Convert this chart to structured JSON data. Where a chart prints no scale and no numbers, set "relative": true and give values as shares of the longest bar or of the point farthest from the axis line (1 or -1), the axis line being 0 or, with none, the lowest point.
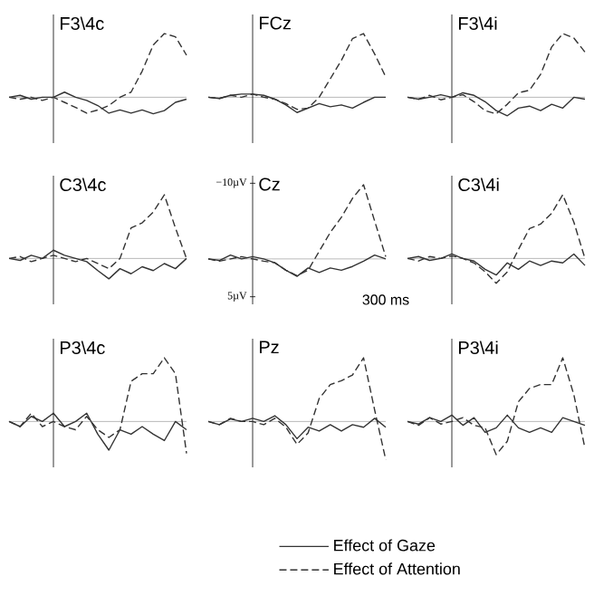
{
  "chart_data": [
    {
      "type": "line",
      "title": "F3\\4c",
      "categories": [
        null,
        null,
        null,
        null,
        null,
        null,
        null,
        null,
        null,
        null,
        null,
        null,
        null,
        null,
        null,
        null,
        null
      ],
      "relative": true,
      "series": [
        {
          "color": "#333333",
          "line_style": "solid",
          "values": [
            0,
            0.03,
            -0.03,
            0,
            0,
            0.08,
            0,
            -0.05,
            -0.13,
            -0.25,
            -0.2,
            -0.25,
            -0.2,
            -0.26,
            -0.21,
            -0.08,
            -0.03
          ]
        },
        {
          "color": "#333333",
          "line_style": "dashed",
          "values": [
            0,
            -0.03,
            0,
            -0.05,
            0,
            -0.08,
            -0.16,
            -0.25,
            -0.2,
            -0.13,
            0,
            0.08,
            0.41,
            0.82,
            1,
            0.95,
            0.66
          ]
        }
      ]
    },
    {
      "type": "line",
      "title": "FCz",
      "categories": [
        null,
        null,
        null,
        null,
        null,
        null,
        null,
        null,
        null,
        null,
        null,
        null,
        null,
        null,
        null,
        null,
        null
      ],
      "relative": true,
      "series": [
        {
          "color": "#333333",
          "line_style": "solid",
          "values": [
            0,
            -0.02,
            0.03,
            0.05,
            0.05,
            0.03,
            -0.03,
            -0.12,
            -0.24,
            -0.17,
            -0.1,
            -0.15,
            -0.12,
            -0.17,
            -0.08,
            0,
            0
          ]
        },
        {
          "color": "#333333",
          "line_style": "dashed",
          "values": [
            0,
            -0.02,
            0.03,
            0,
            0.05,
            0,
            -0.03,
            -0.1,
            -0.19,
            -0.17,
            0,
            0.29,
            0.58,
            0.92,
            1,
            0.68,
            0.32
          ]
        }
      ]
    },
    {
      "type": "line",
      "title": "F3\\4i",
      "categories": [
        null,
        null,
        null,
        null,
        null,
        null,
        null,
        null,
        null,
        null,
        null,
        null,
        null,
        null,
        null,
        null,
        null
      ],
      "relative": true,
      "series": [
        {
          "color": "#333333",
          "line_style": "solid",
          "values": [
            0,
            -0.03,
            0,
            0.04,
            0,
            0.07,
            0.03,
            -0.07,
            -0.21,
            -0.29,
            -0.17,
            -0.14,
            -0.21,
            -0.11,
            -0.17,
            0,
            -0.03
          ]
        },
        {
          "color": "#333333",
          "line_style": "dashed",
          "values": [
            0,
            -0.03,
            0.03,
            -0.04,
            0,
            0.04,
            -0.07,
            -0.21,
            -0.26,
            -0.11,
            0.07,
            0.11,
            0.36,
            0.79,
            1,
            0.93,
            0.71
          ]
        }
      ]
    },
    {
      "type": "line",
      "title": "C3\\4c",
      "categories": [
        null,
        null,
        null,
        null,
        null,
        null,
        null,
        null,
        null,
        null,
        null,
        null,
        null,
        null,
        null,
        null,
        null
      ],
      "relative": true,
      "series": [
        {
          "color": "#333333",
          "line_style": "solid",
          "values": [
            0,
            -0.03,
            0.05,
            0,
            0.13,
            0.05,
            0,
            -0.05,
            -0.19,
            -0.32,
            -0.16,
            -0.24,
            -0.13,
            -0.19,
            -0.08,
            -0.16,
            0
          ]
        },
        {
          "color": "#333333",
          "line_style": "dashed",
          "values": [
            0,
            0.03,
            -0.05,
            0,
            0.05,
            0,
            -0.05,
            0,
            -0.08,
            -0.16,
            0,
            0.48,
            0.56,
            0.73,
            1,
            0.48,
            0
          ]
        }
      ]
    },
    {
      "type": "line",
      "title": "Cz",
      "categories": [
        null,
        null,
        null,
        null,
        null,
        null,
        null,
        null,
        null,
        null,
        null,
        null,
        null,
        null,
        null,
        null,
        null
      ],
      "ylim": [
        6,
        -11
      ],
      "yticks": [
        {
          "value": -10,
          "label": "−10µV"
        },
        {
          "value": 5,
          "label": "5µV"
        }
      ],
      "annotations": [
        "300 ms"
      ],
      "series": [
        {
          "color": "#333333",
          "line_style": "solid",
          "values": [
            0,
            0.2,
            -0.5,
            0,
            -0.3,
            0,
            0.5,
            1.5,
            2.3,
            1.2,
            1.8,
            1.2,
            1.5,
            1,
            0.3,
            -0.5,
            0
          ]
        },
        {
          "color": "#333333",
          "line_style": "dashed",
          "values": [
            0,
            0.3,
            0,
            -0.3,
            0,
            0.3,
            0.5,
            1.5,
            2.2,
            1.5,
            -1,
            -3.5,
            -5.5,
            -8,
            -9.8,
            -5,
            -0.3
          ]
        }
      ]
    },
    {
      "type": "line",
      "title": "C3\\4i",
      "categories": [
        null,
        null,
        null,
        null,
        null,
        null,
        null,
        null,
        null,
        null,
        null,
        null,
        null,
        null,
        null,
        null,
        null
      ],
      "relative": true,
      "series": [
        {
          "color": "#333333",
          "line_style": "solid",
          "values": [
            0,
            0.03,
            -0.03,
            0,
            0.07,
            0,
            -0.04,
            -0.17,
            -0.26,
            -0.07,
            -0.17,
            -0.04,
            -0.11,
            -0.04,
            -0.07,
            0.07,
            -0.11
          ]
        },
        {
          "color": "#333333",
          "line_style": "dashed",
          "values": [
            0,
            -0.04,
            0.03,
            0,
            0.04,
            0,
            -0.07,
            -0.21,
            -0.39,
            -0.21,
            0.14,
            0.47,
            0.54,
            0.71,
            1,
            0.57,
            0
          ]
        }
      ]
    },
    {
      "type": "line",
      "title": "P3\\4c",
      "categories": [
        null,
        null,
        null,
        null,
        null,
        null,
        null,
        null,
        null,
        null,
        null,
        null,
        null,
        null,
        null,
        null,
        null
      ],
      "relative": true,
      "series": [
        {
          "color": "#333333",
          "line_style": "solid",
          "values": [
            0,
            -0.08,
            0.08,
            0,
            0.13,
            -0.08,
            0,
            0.13,
            -0.2,
            -0.45,
            -0.13,
            -0.2,
            -0.08,
            -0.2,
            -0.3,
            0,
            -0.13
          ]
        },
        {
          "color": "#333333",
          "line_style": "dashed",
          "values": [
            0,
            -0.08,
            0.13,
            -0.08,
            0,
            -0.08,
            -0.13,
            0.08,
            -0.13,
            -0.25,
            -0.13,
            0.63,
            0.75,
            0.75,
            1,
            0.75,
            -0.5
          ]
        }
      ]
    },
    {
      "type": "line",
      "title": "Pz",
      "categories": [
        null,
        null,
        null,
        null,
        null,
        null,
        null,
        null,
        null,
        null,
        null,
        null,
        null,
        null,
        null,
        null,
        null
      ],
      "relative": true,
      "legend": "bottom",
      "series": [
        {
          "name": "Effect of Gaze",
          "color": "#333333",
          "line_style": "solid",
          "values": [
            0,
            -0.05,
            0.04,
            0,
            0.05,
            0,
            0.09,
            -0.05,
            -0.27,
            -0.09,
            -0.15,
            -0.05,
            -0.15,
            -0.05,
            -0.09,
            0.05,
            -0.09
          ]
        },
        {
          "name": "Effect of Attention",
          "color": "#333333",
          "line_style": "dashed",
          "values": [
            0,
            -0.05,
            0.05,
            0,
            0,
            -0.05,
            0.05,
            -0.09,
            -0.36,
            -0.18,
            0.36,
            0.58,
            0.64,
            0.73,
            1,
            0.18,
            -0.6
          ]
        }
      ]
    },
    {
      "type": "line",
      "title": "P3\\4i",
      "categories": [
        null,
        null,
        null,
        null,
        null,
        null,
        null,
        null,
        null,
        null,
        null,
        null,
        null,
        null,
        null,
        null,
        null
      ],
      "relative": true,
      "series": [
        {
          "color": "#333333",
          "line_style": "solid",
          "values": [
            0,
            -0.04,
            0.06,
            0,
            0.1,
            -0.06,
            0.06,
            -0.17,
            -0.1,
            0.1,
            -0.1,
            -0.17,
            -0.1,
            -0.17,
            0.06,
            0,
            -0.06
          ]
        },
        {
          "color": "#333333",
          "line_style": "dashed",
          "values": [
            0,
            -0.06,
            0.06,
            -0.04,
            0,
            0.06,
            -0.06,
            -0.1,
            -0.52,
            -0.31,
            0.31,
            0.52,
            0.58,
            0.58,
            1,
            0.42,
            -0.42
          ]
        }
      ]
    }
  ]
}
